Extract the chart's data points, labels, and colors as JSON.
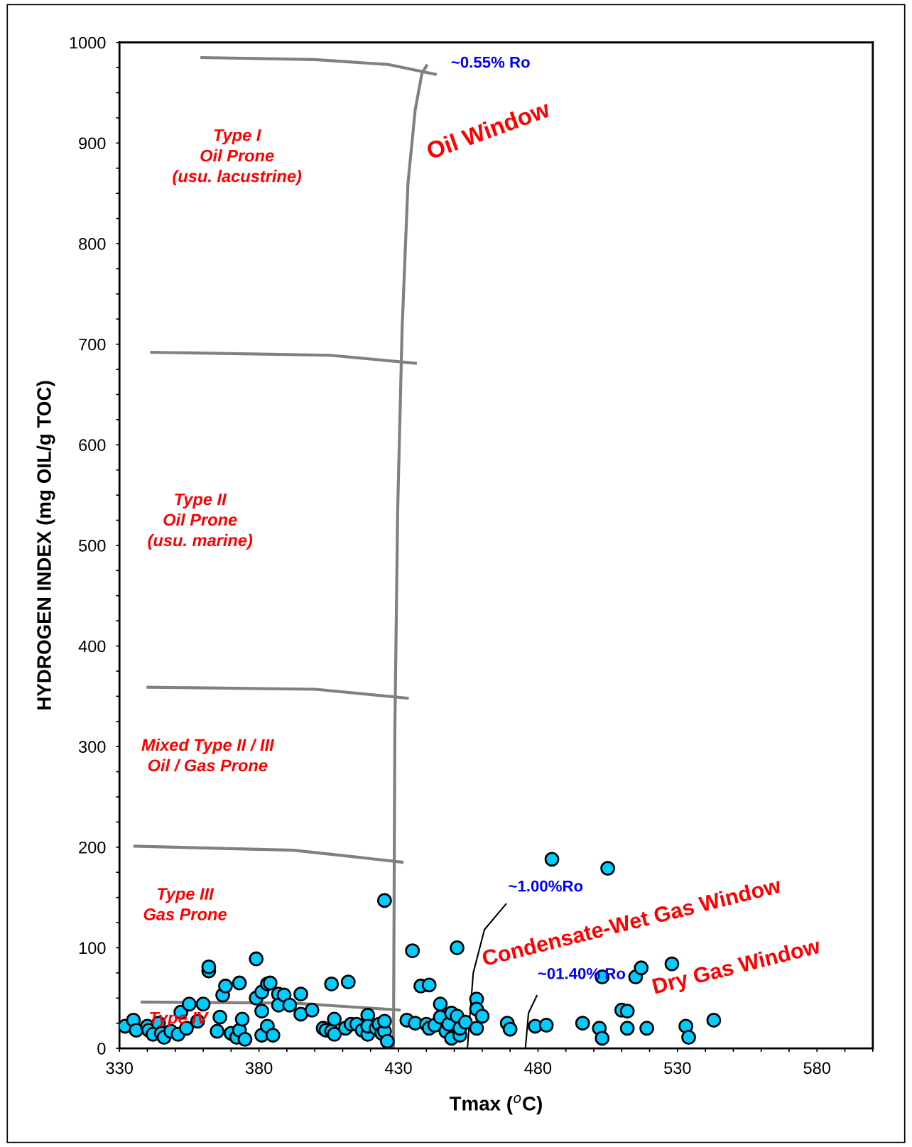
{
  "chart_data": {
    "type": "scatter",
    "xlabel": "Tmax ($^{o}$C)",
    "ylabel": "HYDROGEN INDEX (mg OIL/g TOC)",
    "xlim": [
      330,
      600
    ],
    "ylim": [
      0,
      1000
    ],
    "xticks": [
      330,
      {
        "value": 340,
        "label": null
      },
      {
        "value": 350,
        "label": null
      },
      {
        "value": 360,
        "label": null
      },
      {
        "value": 370,
        "label": null
      },
      380,
      {
        "value": 390,
        "label": null
      },
      {
        "value": 400,
        "label": null
      },
      {
        "value": 410,
        "label": null
      },
      {
        "value": 420,
        "label": null
      },
      430,
      {
        "value": 440,
        "label": null
      },
      {
        "value": 450,
        "label": null
      },
      {
        "value": 460,
        "label": null
      },
      {
        "value": 470,
        "label": null
      },
      480,
      {
        "value": 490,
        "label": null
      },
      {
        "value": 500,
        "label": null
      },
      {
        "value": 510,
        "label": null
      },
      {
        "value": 520,
        "label": null
      },
      530,
      {
        "value": 540,
        "label": null
      },
      {
        "value": 550,
        "label": null
      },
      {
        "value": 560,
        "label": null
      },
      {
        "value": 570,
        "label": null
      },
      580,
      {
        "value": 590,
        "label": null
      },
      {
        "value": 600,
        "label": null
      }
    ],
    "yticks": [
      0,
      {
        "value": 25,
        "label": null
      },
      {
        "value": 50,
        "label": null
      },
      {
        "value": 75,
        "label": null
      },
      100,
      {
        "value": 125,
        "label": null
      },
      {
        "value": 150,
        "label": null
      },
      {
        "value": 175,
        "label": null
      },
      200,
      {
        "value": 225,
        "label": null
      },
      {
        "value": 250,
        "label": null
      },
      {
        "value": 275,
        "label": null
      },
      300,
      {
        "value": 325,
        "label": null
      },
      {
        "value": 350,
        "label": null
      },
      {
        "value": 375,
        "label": null
      },
      400,
      {
        "value": 425,
        "label": null
      },
      {
        "value": 450,
        "label": null
      },
      {
        "value": 475,
        "label": null
      },
      500,
      {
        "value": 525,
        "label": null
      },
      {
        "value": 550,
        "label": null
      },
      {
        "value": 575,
        "label": null
      },
      600,
      {
        "value": 625,
        "label": null
      },
      {
        "value": 650,
        "label": null
      },
      {
        "value": 675,
        "label": null
      },
      700,
      {
        "value": 725,
        "label": null
      },
      {
        "value": 750,
        "label": null
      },
      {
        "value": 775,
        "label": null
      },
      800,
      {
        "value": 825,
        "label": null
      },
      {
        "value": 850,
        "label": null
      },
      {
        "value": 875,
        "label": null
      },
      900,
      {
        "value": 925,
        "label": null
      },
      {
        "value": 950,
        "label": null
      },
      {
        "value": 975,
        "label": null
      },
      1000
    ],
    "grid": false,
    "series": [
      {
        "type": "line",
        "color": "#808080",
        "x": [
          428.2,
          428.7,
          429.7,
          431.3,
          433.4,
          436,
          438.4,
          440.3
        ],
        "values": [
          0,
          315,
          533,
          715,
          860,
          933,
          969,
          978
        ]
      },
      {
        "type": "line",
        "color": "#808080",
        "x": [
          359,
          400,
          426.6,
          443.7
        ],
        "values": [
          985,
          983,
          978,
          968
        ]
      },
      {
        "type": "line",
        "color": "#808080",
        "x": [
          341,
          405.5,
          436.6
        ],
        "values": [
          692,
          689,
          681
        ]
      },
      {
        "type": "line",
        "color": "#808080",
        "x": [
          339.7,
          400.3,
          433.7
        ],
        "values": [
          359,
          357,
          348
        ]
      },
      {
        "type": "line",
        "color": "#808080",
        "x": [
          335,
          392.4,
          431.8
        ],
        "values": [
          201,
          197,
          185
        ]
      },
      {
        "type": "line",
        "color": "#808080",
        "x": [
          337.6,
          392.4,
          430.8
        ],
        "values": [
          46,
          45,
          38
        ]
      },
      {
        "type": "line",
        "color": "#000000",
        "x": [
          454.7,
          456.8,
          460.8,
          468.7
        ],
        "values": [
          0,
          75,
          118,
          144
        ]
      },
      {
        "type": "line",
        "color": "#000000",
        "x": [
          475.5,
          476.6,
          479.7
        ],
        "values": [
          0,
          35,
          53
        ]
      },
      {
        "marker": "circle",
        "color": "#00ccff",
        "x": [
          332,
          335,
          336,
          340,
          340.5,
          342,
          344,
          345,
          346,
          348.4,
          351,
          352,
          354,
          355,
          358,
          360,
          362,
          362,
          365,
          366,
          367,
          368,
          370,
          372,
          373,
          373,
          374,
          375,
          379,
          379,
          381,
          381,
          381,
          383,
          384,
          383,
          385,
          387,
          387,
          389,
          391,
          395,
          395,
          399,
          403,
          404,
          406,
          406,
          407,
          407,
          411,
          412,
          413,
          415,
          417,
          419,
          419,
          419,
          422,
          423,
          424,
          425,
          425,
          425,
          426,
          433,
          435,
          436,
          438,
          440,
          441,
          441,
          443,
          445,
          445,
          447,
          448,
          449,
          449,
          451,
          451,
          452,
          452,
          454,
          458,
          458,
          458,
          460,
          469,
          470,
          479,
          483,
          485,
          496,
          502,
          503,
          503,
          505,
          510,
          512,
          512,
          515,
          517,
          519,
          528,
          533,
          534,
          543
        ],
        "values": [
          22,
          28,
          18,
          22,
          18,
          14,
          25,
          15,
          11,
          17,
          14,
          36,
          20,
          44,
          27,
          44,
          77,
          81,
          17,
          31,
          53,
          62,
          15,
          11,
          65,
          18,
          29,
          9,
          89,
          50,
          37,
          56,
          13,
          64,
          65,
          22,
          13,
          54,
          43,
          53,
          43,
          34,
          54,
          38,
          20,
          18,
          64,
          17,
          29,
          14,
          20,
          66,
          24,
          24,
          18,
          33,
          14,
          22,
          20,
          24,
          15,
          17,
          147,
          27,
          7,
          28,
          97,
          25,
          62,
          24,
          20,
          63,
          23,
          44,
          31,
          17,
          24,
          35,
          10,
          100,
          32,
          13,
          20,
          26,
          49,
          39,
          20,
          32,
          25,
          19,
          22,
          23,
          188,
          25,
          20,
          10,
          71,
          179,
          38,
          37,
          20,
          71,
          80,
          20,
          84,
          22,
          11,
          28
        ]
      }
    ],
    "annotations": [
      "Type I\nOil Prone\n(usu. lacustrine)",
      "Type II\nOil Prone\n(usu. marine)",
      "Mixed Type II / III\nOil / Gas Prone",
      "Type III\nGas Prone",
      "Type IV",
      "~0.55% Ro",
      "Oil Window",
      "~1.00%Ro",
      "Condensate-Wet Gas Window",
      "~01.40% Ro",
      "Dry Gas Window"
    ]
  }
}
